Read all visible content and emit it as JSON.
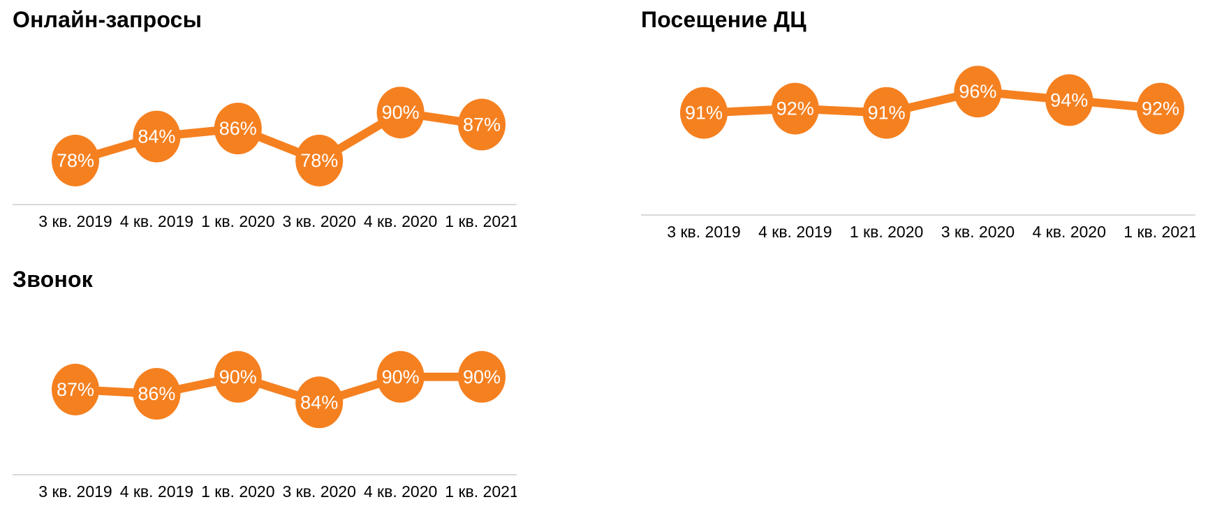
{
  "colors": {
    "accent_orange": "#F58020",
    "axis_line": "#D9D9D9",
    "axis_text": "#000000",
    "marker_label_text": "#FFFFFF",
    "title_text": "#000000",
    "background": "#FFFFFF"
  },
  "chart_data": [
    {
      "type": "line",
      "title": "Онлайн-запросы",
      "categories": [
        "3 кв. 2019",
        "4 кв. 2019",
        "1 кв. 2020",
        "3 кв. 2020",
        "4 кв. 2020",
        "1 кв. 2021"
      ],
      "values": [
        78,
        84,
        86,
        78,
        90,
        87
      ],
      "labels": [
        "78%",
        "84%",
        "86%",
        "78%",
        "90%",
        "87%"
      ],
      "value_suffix": "%",
      "ylim": [
        67,
        108
      ],
      "grid": false,
      "legend": false
    },
    {
      "type": "line",
      "title": "Посещение ДЦ",
      "categories": [
        "3 кв. 2019",
        "4 кв. 2019",
        "1 кв. 2020",
        "3 кв. 2020",
        "4 кв. 2020",
        "1 кв. 2021"
      ],
      "values": [
        91,
        92,
        91,
        96,
        94,
        92
      ],
      "labels": [
        "91%",
        "92%",
        "91%",
        "96%",
        "94%",
        "92%"
      ],
      "value_suffix": "%",
      "ylim": [
        67,
        108
      ],
      "grid": false,
      "legend": false
    },
    {
      "type": "line",
      "title": "Звонок",
      "categories": [
        "3 кв. 2019",
        "4 кв. 2019",
        "1 кв. 2020",
        "3 кв. 2020",
        "4 кв. 2020",
        "1 кв. 2021"
      ],
      "values": [
        87,
        86,
        90,
        84,
        90,
        90
      ],
      "labels": [
        "87%",
        "86%",
        "90%",
        "84%",
        "90%",
        "90%"
      ],
      "value_suffix": "%",
      "ylim": [
        67,
        108
      ],
      "grid": false,
      "legend": false
    }
  ]
}
